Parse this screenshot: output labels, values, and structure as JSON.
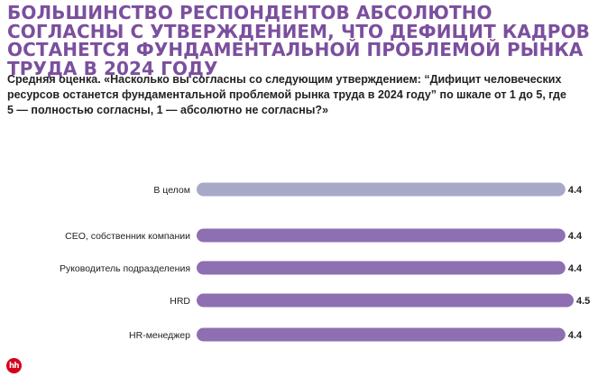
{
  "title": {
    "part1": "Большинство",
    "part2": " респондентов ",
    "part3": "абсолютно согласны",
    "part4": " с утверждением, что ",
    "part5": "дефицит кадров останется",
    "part6": " фундаментальной проблемой рынка труда в 2024 году"
  },
  "subtitle": "Средняя оценка. «Насколько вы согласны со следующим утверждением: “Дифицит человеческих ресурсов останется фундаментальной проблемой рынка труда в 2024 году” по шкале от 1 до 5, где 5 — полностью согласны, 1 — абсолютно не согласны?»",
  "logo": "hh",
  "chart_data": {
    "type": "bar",
    "orientation": "horizontal",
    "categories": [
      "В целом",
      "CEO, собственник компании",
      "Руководитель подразделения",
      "HRD",
      "HR-менеджер"
    ],
    "values": [
      4.4,
      4.4,
      4.4,
      4.5,
      4.4
    ],
    "labels": [
      "4.4",
      "4.4",
      "4.4",
      "4.5",
      "4.4"
    ],
    "colors": [
      "#a8a9c8",
      "#8e6fb1",
      "#8e6fb1",
      "#8e6fb1",
      "#8e6fb1"
    ],
    "xlim": [
      0,
      4.5
    ],
    "grid": false
  }
}
